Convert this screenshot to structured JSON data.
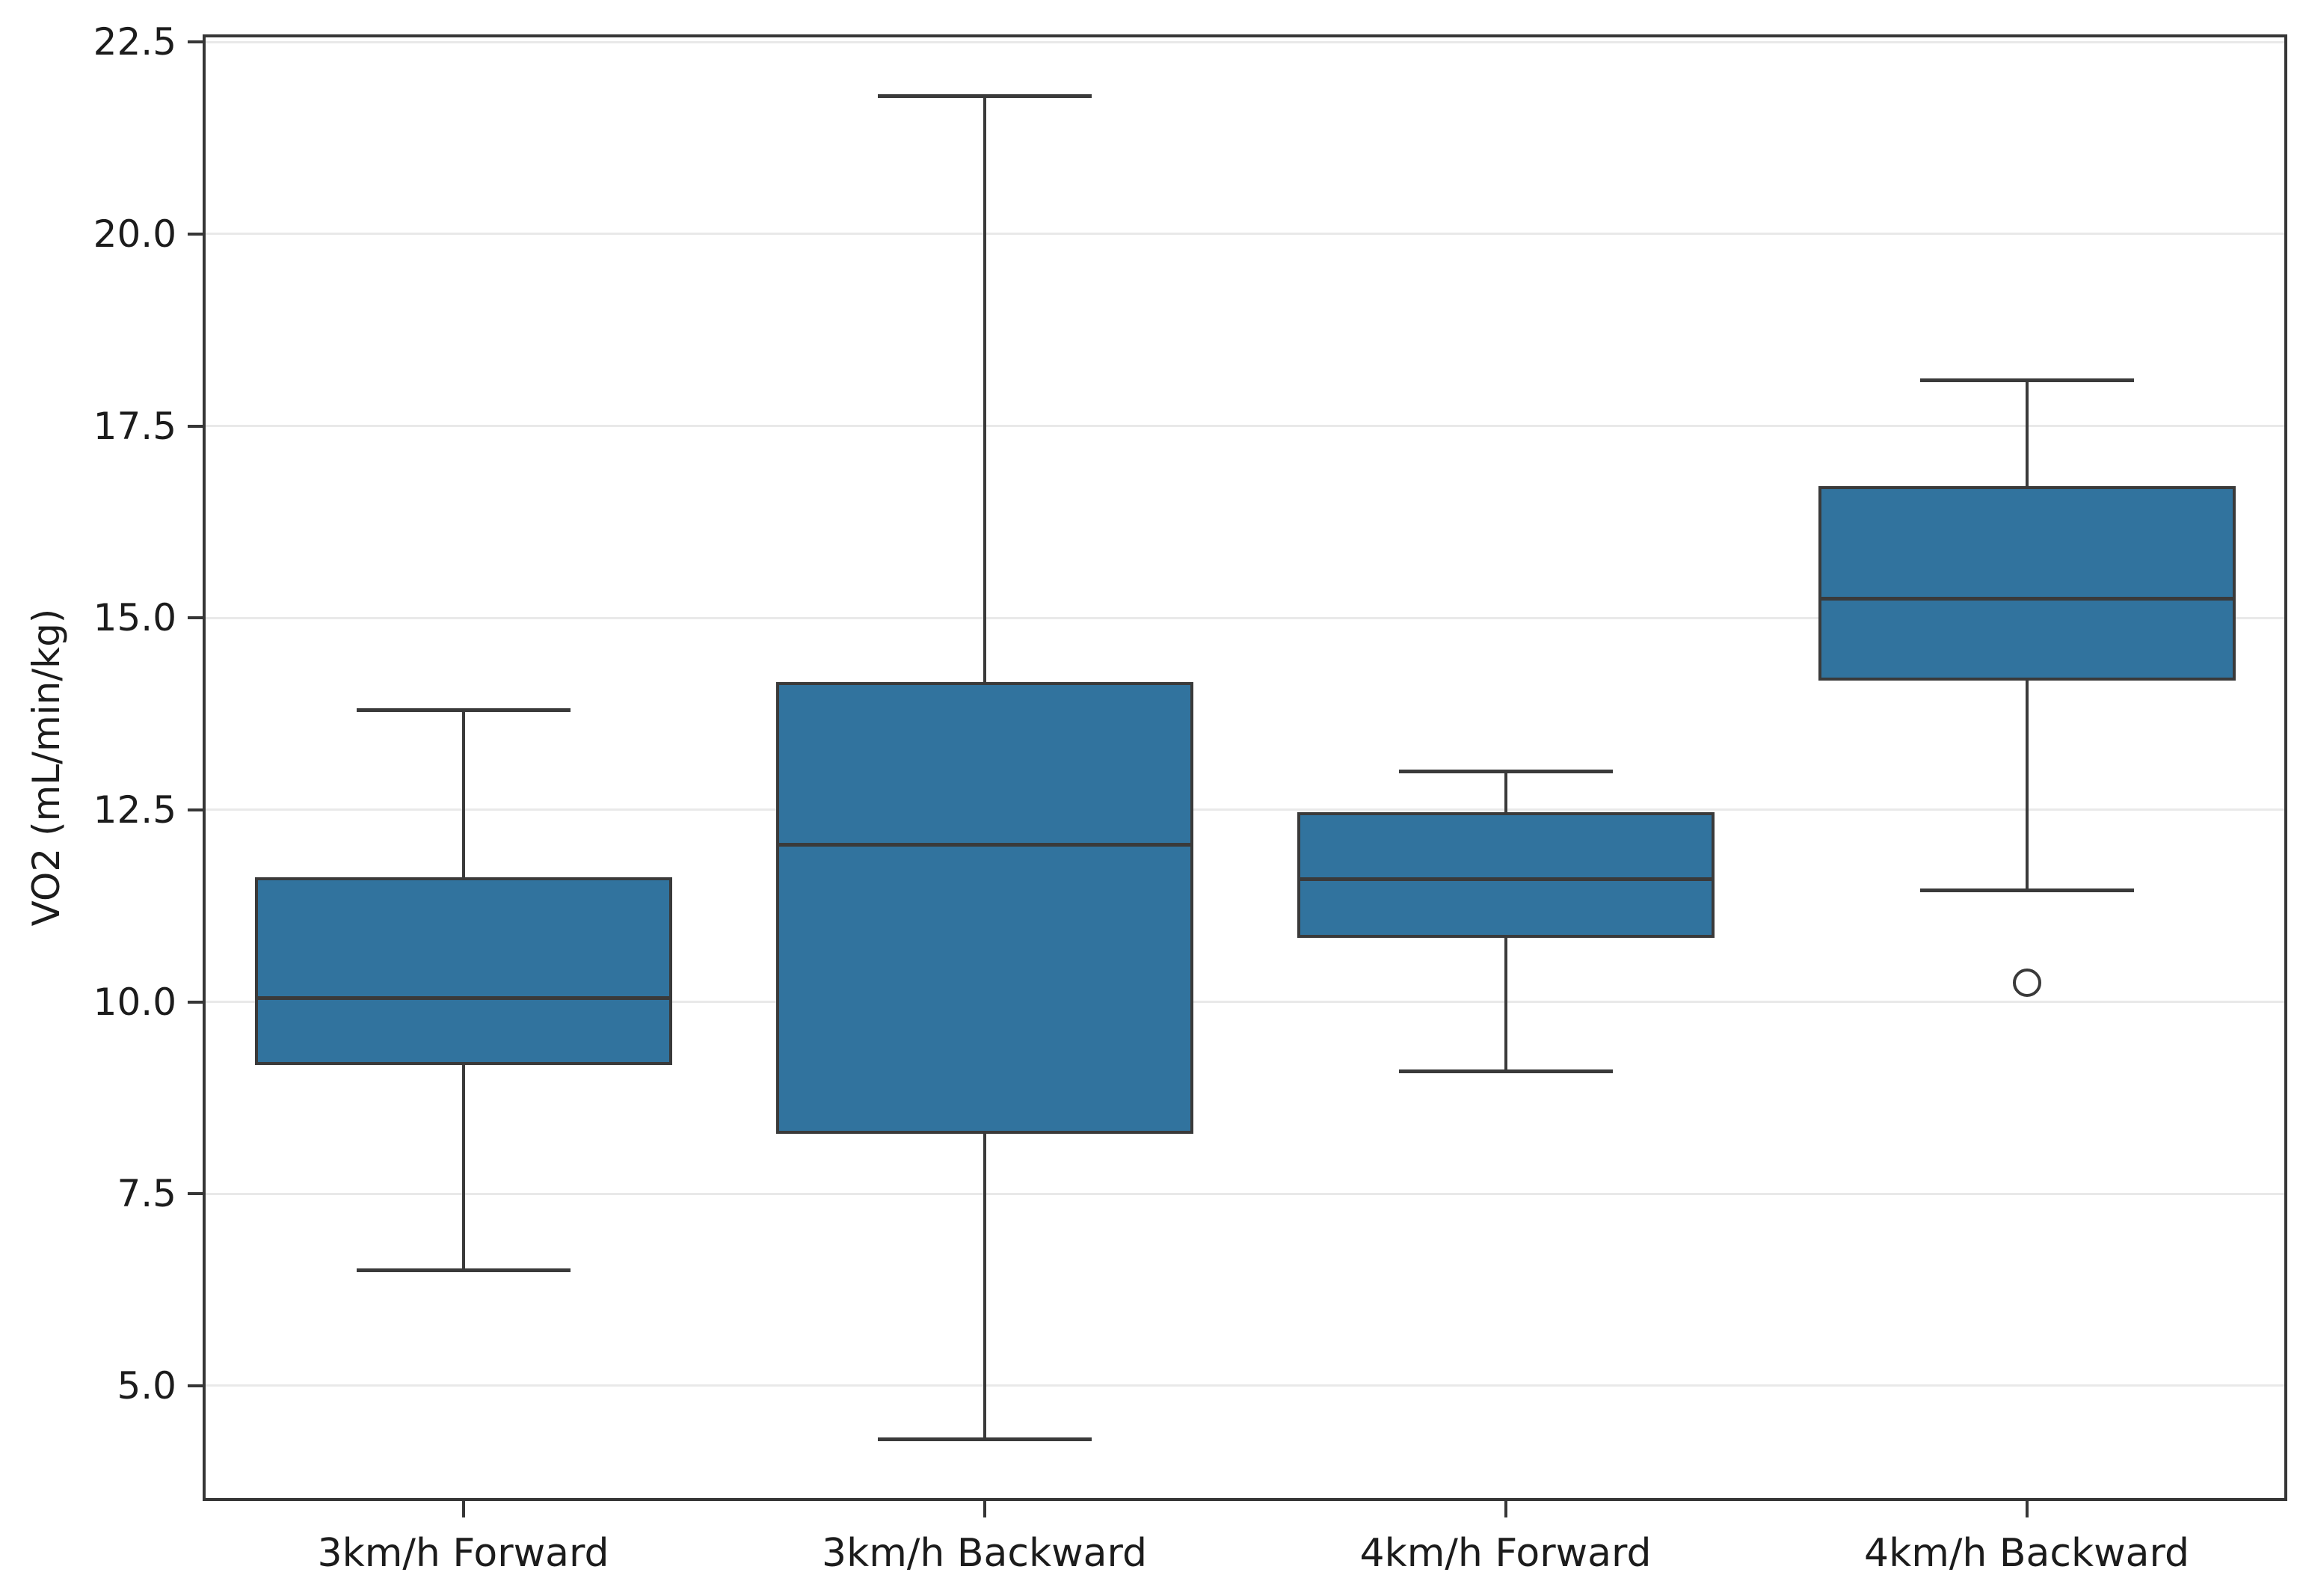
{
  "chart_data": {
    "type": "box",
    "title": "",
    "xlabel": "",
    "ylabel": "VO2 (mL/min/kg)",
    "categories": [
      "3km/h Forward",
      "3km/h Backward",
      "4km/h Forward",
      "4km/h Backward"
    ],
    "series": [
      {
        "category": "3km/h Forward",
        "whisker_low": 6.5,
        "q1": 9.2,
        "median": 10.05,
        "q3": 11.6,
        "whisker_high": 13.8,
        "outliers": []
      },
      {
        "category": "3km/h Backward",
        "whisker_low": 4.3,
        "q1": 8.3,
        "median": 12.05,
        "q3": 14.15,
        "whisker_high": 21.8,
        "outliers": []
      },
      {
        "category": "4km/h Forward",
        "whisker_low": 9.1,
        "q1": 10.85,
        "median": 11.6,
        "q3": 12.45,
        "whisker_high": 13.0,
        "outliers": []
      },
      {
        "category": "4km/h Backward",
        "whisker_low": 11.45,
        "q1": 14.2,
        "median": 15.25,
        "q3": 16.7,
        "whisker_high": 18.1,
        "outliers": [
          10.25
        ]
      }
    ],
    "y_ticks": [
      22.5,
      20.0,
      17.5,
      15.0,
      12.5,
      10.0,
      7.5,
      5.0
    ],
    "y_tick_labels": [
      "22.5",
      "20.0",
      "17.5",
      "15.0",
      "12.5",
      "10.0",
      "7.5",
      "5.0"
    ],
    "ylim": [
      3.5,
      22.6
    ],
    "grid": "horizontal",
    "legend": "none",
    "colors": {
      "box_fill": "#31739e",
      "box_edge": "#3a3a3a",
      "median": "#3a3a3a",
      "whisker": "#3a3a3a",
      "outlier_stroke": "#3a3a3a",
      "grid": "#e9e9e9",
      "spine": "#363636",
      "text": "#1c1c1c",
      "background": "#ffffff"
    }
  }
}
